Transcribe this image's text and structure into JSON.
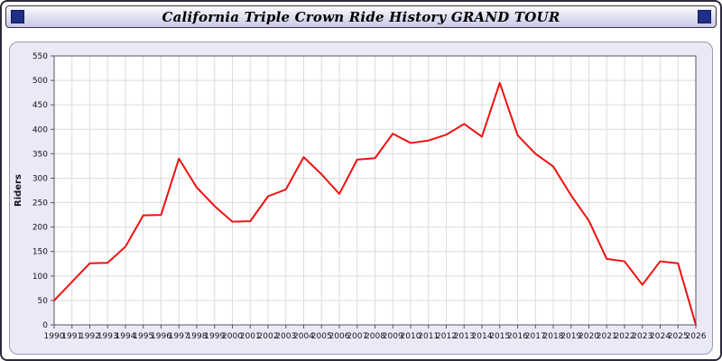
{
  "header": {
    "title": "California Triple Crown Ride History GRAND TOUR"
  },
  "chart_data": {
    "type": "line",
    "title": "California Triple Crown Ride History GRAND TOUR",
    "xlabel": "",
    "ylabel": "Riders",
    "ylim": [
      0,
      550
    ],
    "ytick_step": 50,
    "grid": true,
    "legend_position": "none",
    "line_color": "#ee1111",
    "plot_bg": "#ffffff",
    "grid_color": "#dcdcdc",
    "axis_color": "#555566",
    "tick_label_color": "#111122",
    "categories": [
      "1990",
      "1991",
      "1992",
      "1993",
      "1994",
      "1995",
      "1996",
      "1997",
      "1998",
      "1999",
      "2000",
      "2001",
      "2002",
      "2003",
      "2004",
      "2005",
      "2006",
      "2007",
      "2008",
      "2009",
      "2010",
      "2011",
      "2012",
      "2013",
      "2014",
      "2015",
      "2016",
      "2017",
      "2018",
      "2019",
      "2020",
      "2021",
      "2022",
      "2023",
      "2024",
      "2025",
      "2026"
    ],
    "values": [
      50,
      88,
      126,
      127,
      160,
      224,
      225,
      340,
      281,
      243,
      211,
      212,
      263,
      277,
      343,
      308,
      268,
      338,
      341,
      391,
      372,
      377,
      389,
      411,
      385,
      495,
      388,
      350,
      324,
      265,
      213,
      135,
      130,
      82,
      130,
      126,
      0
    ]
  }
}
